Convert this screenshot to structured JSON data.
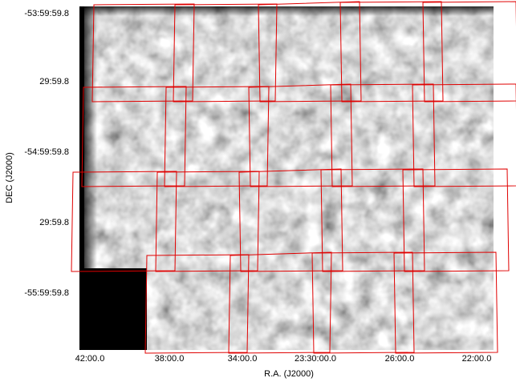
{
  "x_axis": {
    "label": "R.A. (J2000)",
    "ticks": [
      "42:00.0",
      "38:00.0",
      "34:00.0",
      "23:30:00.0",
      "26:00.0",
      "22:00.0"
    ]
  },
  "y_axis": {
    "label": "DEC (J2000)",
    "ticks": [
      "-53:59:59.8",
      "29:59.8",
      "-54:59:59.8",
      "29:59.8",
      "-55:59:59.8"
    ]
  }
}
